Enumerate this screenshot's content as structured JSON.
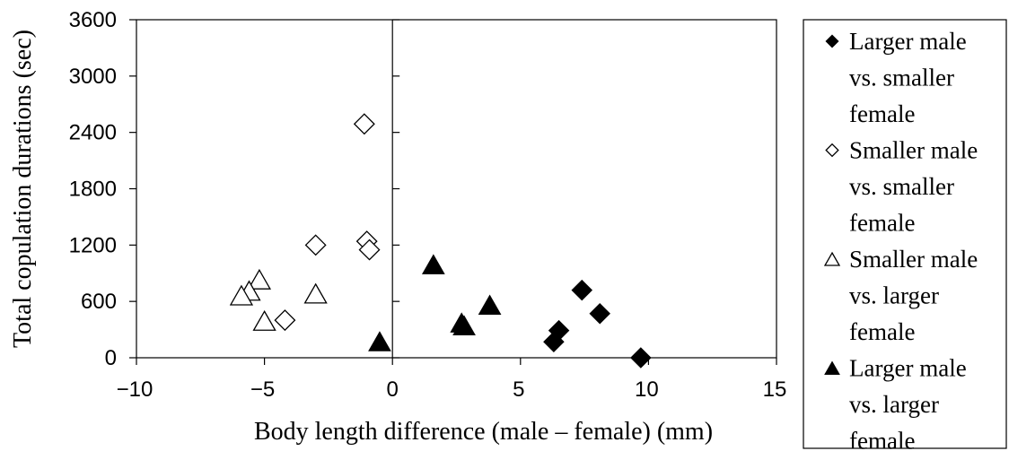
{
  "chart_data": {
    "type": "scatter",
    "title": "",
    "xlabel": "Body length difference (male – female) (mm)",
    "ylabel": "Total copulation durations (sec)",
    "xlim": [
      -10,
      15
    ],
    "ylim": [
      0,
      3600
    ],
    "x_ticks": [
      -10,
      -5,
      0,
      5,
      10,
      15
    ],
    "x_tick_labels": [
      "−10",
      "−5",
      "0",
      "5",
      "10",
      "15"
    ],
    "y_ticks": [
      0,
      600,
      1200,
      1800,
      2400,
      3000,
      3600
    ],
    "y_tick_labels": [
      "0",
      "600",
      "1200",
      "1800",
      "2400",
      "3000",
      "3600"
    ],
    "grid": false,
    "zero_line": true,
    "legend_position": "right",
    "series": [
      {
        "key": "larger-male-smaller-female",
        "legend_lines": [
          "Larger male",
          "vs. smaller",
          "female"
        ],
        "marker": "diamond-filled",
        "x": [
          7.4,
          8.1,
          6.5,
          6.3,
          9.7
        ],
        "y": [
          720,
          470,
          290,
          170,
          0
        ]
      },
      {
        "key": "smaller-male-smaller-female",
        "legend_lines": [
          "Smaller male",
          "vs. smaller",
          "female"
        ],
        "marker": "diamond-open",
        "x": [
          -1.1,
          -3.0,
          -1.0,
          -0.9,
          -4.2
        ],
        "y": [
          2490,
          1200,
          1240,
          1150,
          400
        ]
      },
      {
        "key": "smaller-male-larger-female",
        "legend_lines": [
          "Smaller male",
          "vs. larger",
          "female"
        ],
        "marker": "triangle-open",
        "x": [
          -5.2,
          -5.6,
          -5.9,
          -3.0,
          -5.0
        ],
        "y": [
          810,
          690,
          640,
          660,
          370
        ]
      },
      {
        "key": "larger-male-larger-female",
        "legend_lines": [
          "Larger male",
          "vs. larger",
          "female"
        ],
        "marker": "triangle-filled",
        "x": [
          1.6,
          2.7,
          2.8,
          3.8,
          -0.5
        ],
        "y": [
          970,
          350,
          320,
          540,
          150
        ]
      }
    ]
  }
}
